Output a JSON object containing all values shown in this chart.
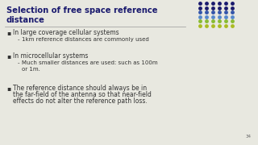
{
  "title_line1": "Selection of free space reference",
  "title_line2": "distance",
  "title_color": "#1a1a6e",
  "bg_color": "#e8e8e0",
  "bullet1": "In large coverage cellular systems",
  "sub1": "1km reference distances are commonly used",
  "bullet2": "In microcellular systems",
  "sub2a": "Much smaller distances are used: such as 100m",
  "sub2b": "or 1m.",
  "bullet3a": "The reference distance should always be in",
  "bullet3b": "the far-field of the antenna so that near-field",
  "bullet3c": "effects do not alter the reference path loss.",
  "text_color": "#333333",
  "slide_number": "34",
  "dot_grid": [
    [
      "#1a1a6e",
      "#1a1a6e",
      "#1a1a6e",
      "#1a1a6e",
      "#1a1a6e",
      "#1a1a6e"
    ],
    [
      "#1a1a6e",
      "#1a1a6e",
      "#1a1a6e",
      "#1a1a6e",
      "#1a1a6e",
      "#1a1a6e"
    ],
    [
      "#3355aa",
      "#3355aa",
      "#3355aa",
      "#3355aa",
      "#3355aa",
      "#3355aa"
    ],
    [
      "#5588cc",
      "#5588cc",
      "#5588cc",
      "#5588cc",
      "#5588cc",
      "#5588cc"
    ],
    [
      "#88bb33",
      "#88bb33",
      "#88bb33",
      "#88bb33",
      "#88bb33",
      "#88bb33"
    ],
    [
      "#aabb22",
      "#aabb22",
      "#aabb22",
      "#aabb22",
      "#aabb22",
      "#aabb22"
    ]
  ],
  "separator_color": "#999999",
  "title_fontsize": 7.2,
  "body_fontsize": 5.5,
  "sub_fontsize": 5.0
}
